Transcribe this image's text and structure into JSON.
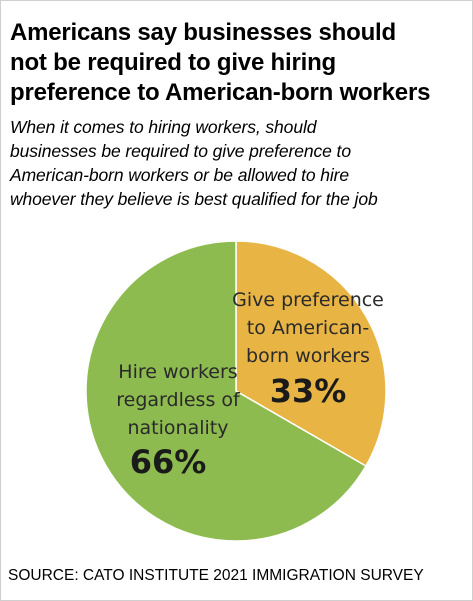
{
  "header": {
    "title_lines": [
      "Americans say businesses should",
      "not be required to give hiring",
      "preference to American-born workers"
    ],
    "subtitle_lines": [
      "When it comes to hiring workers, should",
      "businesses be required to give preference to",
      "American-born workers or be allowed to hire",
      "whoever they believe is best qualified for the job"
    ]
  },
  "chart_data": {
    "type": "pie",
    "slices": [
      {
        "label_lines": [
          "Give preference",
          "to American-",
          "born workers"
        ],
        "value": 33,
        "value_label": "33%",
        "color": "#E8B545"
      },
      {
        "label_lines": [
          "Hire workers",
          "regardless of",
          "nationality"
        ],
        "value": 66,
        "value_label": "66%",
        "color": "#8DBB4F"
      }
    ],
    "start_angle_deg": 0,
    "direction": "clockwise",
    "text_color": "#2a2a2a",
    "value_color": "#1a1a1a"
  },
  "footer": {
    "source": "SOURCE: CATO INSTITUTE 2021 IMMIGRATION SURVEY"
  }
}
